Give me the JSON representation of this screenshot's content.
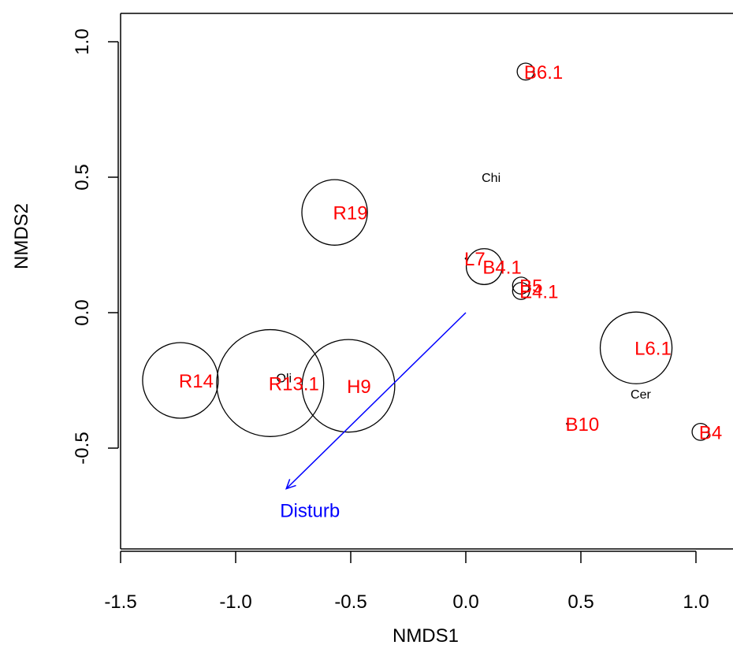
{
  "chart_data": {
    "type": "scatter",
    "xlabel": "NMDS1",
    "ylabel": "NMDS2",
    "xlim": [
      -1.5,
      1.1
    ],
    "ylim": [
      -0.9,
      1.08
    ],
    "x_ticks": [
      {
        "value": -1.5,
        "label": "-1.5"
      },
      {
        "value": -1.0,
        "label": "-1.0"
      },
      {
        "value": -0.5,
        "label": "-0.5"
      },
      {
        "value": 0.0,
        "label": "0.0"
      },
      {
        "value": 0.5,
        "label": "0.5"
      },
      {
        "value": 1.0,
        "label": "1.0"
      }
    ],
    "y_ticks": [
      {
        "value": -0.5,
        "label": "-0.5"
      },
      {
        "value": 0.0,
        "label": "0.0"
      },
      {
        "value": 0.5,
        "label": "0.5"
      },
      {
        "value": 1.0,
        "label": "1.0"
      }
    ],
    "grid": false,
    "colors": {
      "site_label": "#ff0000",
      "vector": "#0000ff",
      "species_label": "#000000",
      "bubble": "#000000"
    },
    "sites": [
      {
        "label": "B6.1",
        "x": 0.26,
        "y": 0.89,
        "bubble": 0.2
      },
      {
        "label": "R19",
        "x": -0.57,
        "y": 0.37,
        "bubble": 3.0
      },
      {
        "label": "L7",
        "x": 0.0,
        "y": 0.2,
        "bubble": 0.0
      },
      {
        "label": "B4.1",
        "x": 0.08,
        "y": 0.17,
        "bubble": 0.9
      },
      {
        "label": "B5",
        "x": 0.24,
        "y": 0.1,
        "bubble": 0.2
      },
      {
        "label": "E4.1",
        "x": 0.24,
        "y": 0.08,
        "bubble": 0.2
      },
      {
        "label": "L6.1",
        "x": 0.74,
        "y": -0.13,
        "bubble": 3.6
      },
      {
        "label": "R14",
        "x": -1.24,
        "y": -0.25,
        "bubble": 4.0
      },
      {
        "label": "R13.1",
        "x": -0.85,
        "y": -0.26,
        "bubble": 8.0
      },
      {
        "label": "H9",
        "x": -0.51,
        "y": -0.27,
        "bubble": 6.0
      },
      {
        "label": "B10",
        "x": 0.44,
        "y": -0.41,
        "bubble": 0.0
      },
      {
        "label": "B4",
        "x": 1.02,
        "y": -0.44,
        "bubble": 0.2
      }
    ],
    "species": [
      {
        "label": "Chi",
        "x": 0.11,
        "y": 0.5
      },
      {
        "label": "Oli",
        "x": -0.79,
        "y": -0.24
      },
      {
        "label": "Cer",
        "x": 0.76,
        "y": -0.3
      }
    ],
    "vectors": [
      {
        "label": "Disturb",
        "x": -0.78,
        "y": -0.65
      }
    ]
  }
}
